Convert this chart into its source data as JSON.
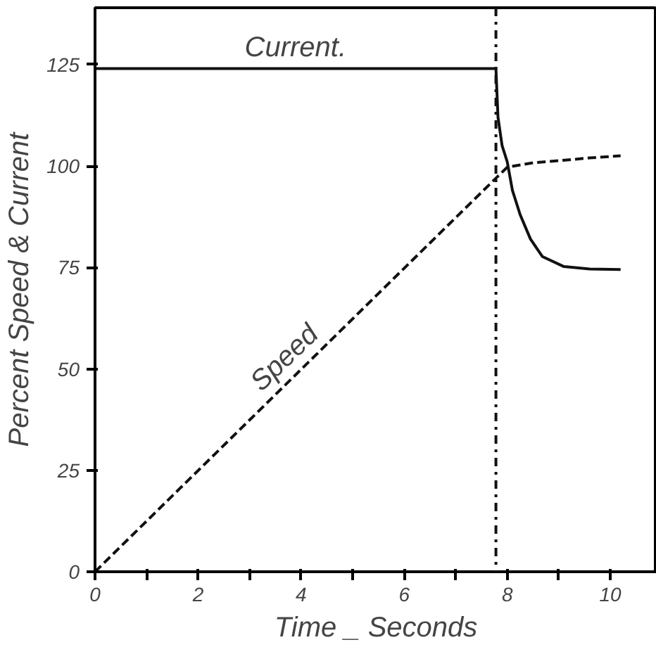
{
  "chart_data": {
    "type": "line",
    "xlabel": "Time _ Seconds",
    "ylabel": "Percent Speed & Current",
    "series": [
      {
        "name": "Current.",
        "color": "#111111",
        "line_style": "solid",
        "x": [
          0,
          7.78,
          7.82,
          7.9,
          8.0,
          8.1,
          8.25,
          8.45,
          8.68,
          9.1,
          9.6,
          10.2
        ],
        "values": [
          124,
          124,
          112,
          105,
          101,
          94,
          88,
          82,
          77.7,
          75.2,
          74.6,
          74.5
        ]
      },
      {
        "name": "Speed",
        "color": "#111111",
        "line_style": "dashed",
        "x": [
          0,
          7.78,
          8.0,
          8.5,
          9.0,
          9.6,
          10.2
        ],
        "values": [
          0,
          97,
          99.7,
          100.8,
          101.3,
          102,
          102.5
        ]
      }
    ],
    "ref_lines": [
      {
        "axis": "x",
        "value": 7.78,
        "label": null,
        "color": "#111111",
        "line_style": "dashdot"
      }
    ],
    "xlim": [
      0,
      10.9
    ],
    "ylim": [
      0,
      139
    ],
    "xticks": [
      0,
      {
        "value": 1,
        "label": null
      },
      2,
      {
        "value": 3,
        "label": null
      },
      4,
      {
        "value": 5,
        "label": null
      },
      6,
      {
        "value": 7,
        "label": null
      },
      8,
      {
        "value": 9,
        "label": null
      },
      10
    ],
    "yticks": [
      0,
      25,
      50,
      75,
      100,
      125
    ],
    "grid": false,
    "legend": false,
    "marker": "none"
  }
}
